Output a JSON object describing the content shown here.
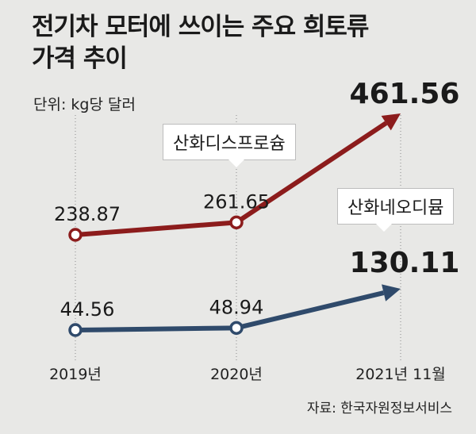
{
  "title_line1": "전기차 모터에 쓰이는 주요 희토류",
  "title_line2": "가격 추이",
  "unit": "단위: kg당 달러",
  "source": "자료: 한국자원정보서비스",
  "colors": {
    "series1": "#8c1c1c",
    "series2": "#2f4a6b",
    "background": "#e8e8e6"
  },
  "chart_data": {
    "type": "line",
    "categories": [
      "2019년",
      "2020년",
      "2021년 11월"
    ],
    "series": [
      {
        "name": "산화디스프로슘",
        "values": [
          238.87,
          261.65,
          461.56
        ],
        "labels": [
          "238.87",
          "261.65",
          "461.56"
        ]
      },
      {
        "name": "산화네오디뮴",
        "values": [
          44.56,
          48.94,
          130.11
        ],
        "labels": [
          "44.56",
          "48.94",
          "130.11"
        ]
      }
    ],
    "title": "전기차 모터에 쓰이는 주요 희토류 가격 추이",
    "ylabel": "kg당 달러"
  }
}
